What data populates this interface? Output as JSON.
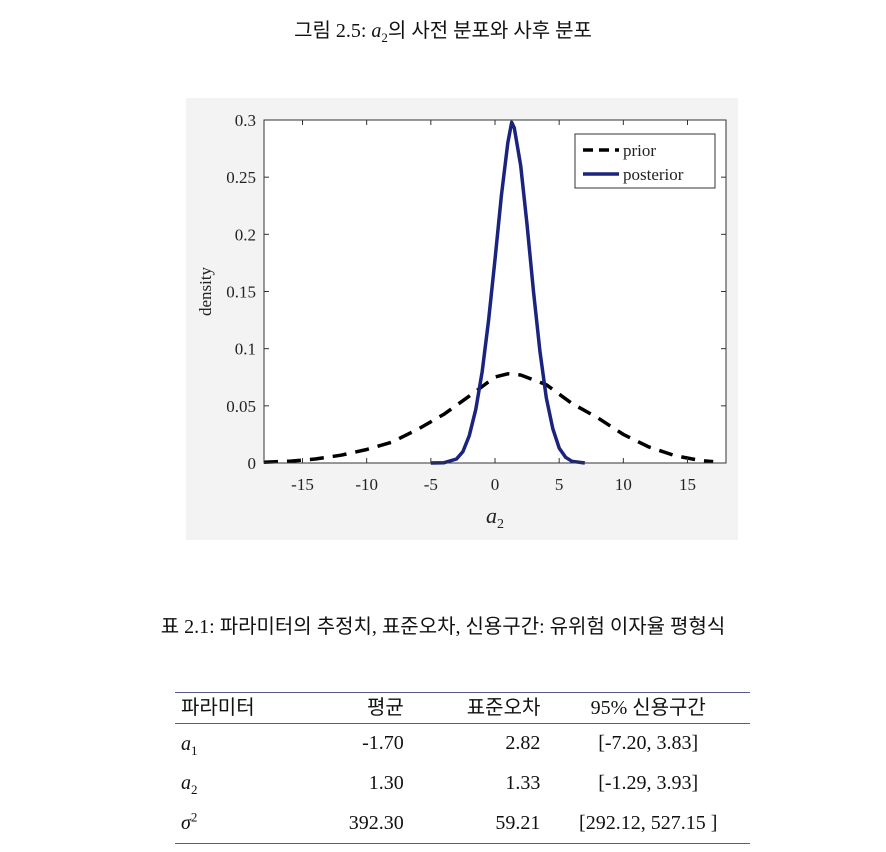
{
  "figure": {
    "caption_prefix": "그림 2.5:",
    "caption_var": "a",
    "caption_var_sub": "2",
    "caption_suffix": "의 사전 분포와 사후 분포"
  },
  "chart_data": {
    "type": "line",
    "title": "",
    "xlabel": "a",
    "xlabel_sub": "2",
    "ylabel": "density",
    "xlim": [
      -18,
      18
    ],
    "ylim": [
      0,
      0.3
    ],
    "xticks": [
      -15,
      -10,
      -5,
      0,
      5,
      10,
      15
    ],
    "xtick_labels": [
      "-15",
      "-10",
      "-5",
      "0",
      "5",
      "10",
      "15"
    ],
    "yticks": [
      0,
      0.05,
      0.1,
      0.15,
      0.2,
      0.25,
      0.3
    ],
    "ytick_labels": [
      "0",
      "0.05",
      "0.1",
      "0.15",
      "0.2",
      "0.25",
      "0.3"
    ],
    "grid": false,
    "legend_position": "top-right",
    "series": [
      {
        "name": "prior",
        "color": "#000000",
        "style": "dashed",
        "x": [
          -18,
          -16,
          -14,
          -12,
          -10,
          -8,
          -6,
          -4,
          -2,
          0,
          1,
          2,
          4,
          6,
          8,
          10,
          12,
          14,
          16,
          17
        ],
        "y": [
          0.0007,
          0.0016,
          0.0035,
          0.0068,
          0.0118,
          0.0184,
          0.0296,
          0.0425,
          0.0585,
          0.0752,
          0.078,
          0.077,
          0.0685,
          0.052,
          0.0395,
          0.025,
          0.014,
          0.0065,
          0.0022,
          0.0012
        ]
      },
      {
        "name": "posterior",
        "color": "#1a237e",
        "style": "solid",
        "x": [
          -5,
          -4,
          -3,
          -2.5,
          -2,
          -1.5,
          -1,
          -0.5,
          0,
          0.5,
          1,
          1.3,
          1.5,
          2,
          2.5,
          3,
          3.5,
          4,
          4.5,
          5,
          5.5,
          6,
          7
        ],
        "y": [
          0.0,
          0.0002,
          0.0035,
          0.01,
          0.024,
          0.047,
          0.08,
          0.125,
          0.178,
          0.234,
          0.28,
          0.298,
          0.293,
          0.26,
          0.208,
          0.15,
          0.098,
          0.057,
          0.03,
          0.013,
          0.005,
          0.0015,
          0.0
        ]
      }
    ]
  },
  "table": {
    "caption": "표 2.1: 파라미터의 추정치, 표준오차, 신용구간: 유위험 이자율 평형식",
    "headers": [
      "파라미터",
      "평균",
      "표준오차",
      "95% 신용구간"
    ],
    "rows": [
      {
        "param": "a",
        "sub": "1",
        "sup": "",
        "mean": "-1.70",
        "se": "2.82",
        "ci": "[-7.20, 3.83]"
      },
      {
        "param": "a",
        "sub": "2",
        "sup": "",
        "mean": "1.30",
        "se": "1.33",
        "ci": "[-1.29, 3.93]"
      },
      {
        "param": "σ",
        "sub": "",
        "sup": "2",
        "mean": "392.30",
        "se": "59.21",
        "ci": "[292.12, 527.15 ]"
      }
    ]
  }
}
